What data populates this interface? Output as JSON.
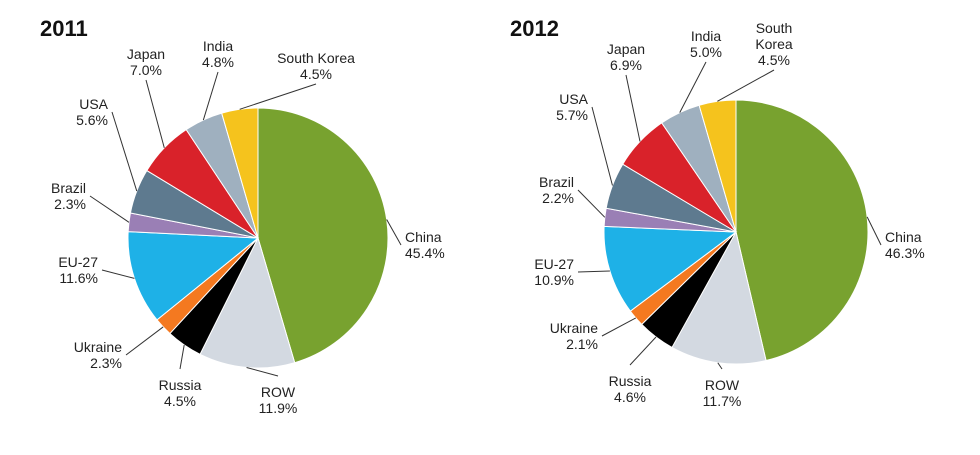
{
  "chart_data": [
    {
      "type": "pie",
      "title": "2011",
      "slices": [
        {
          "label": "China",
          "value": 45.4,
          "value_label": "45.4%",
          "color": "#78A22F"
        },
        {
          "label": "ROW",
          "value": 11.9,
          "value_label": "11.9%",
          "color": "#D3D9E1"
        },
        {
          "label": "Russia",
          "value": 4.5,
          "value_label": "4.5%",
          "color": "#000000"
        },
        {
          "label": "Ukraine",
          "value": 2.3,
          "value_label": "2.3%",
          "color": "#F47920"
        },
        {
          "label": "EU-27",
          "value": 11.6,
          "value_label": "11.6%",
          "color": "#1EB1E7"
        },
        {
          "label": "Brazil",
          "value": 2.3,
          "value_label": "2.3%",
          "color": "#9A7FB5"
        },
        {
          "label": "USA",
          "value": 5.6,
          "value_label": "5.6%",
          "color": "#5E7A8F"
        },
        {
          "label": "Japan",
          "value": 7.0,
          "value_label": "7.0%",
          "color": "#D9222A"
        },
        {
          "label": "India",
          "value": 4.8,
          "value_label": "4.8%",
          "color": "#9FB0BF"
        },
        {
          "label": "South Korea",
          "value": 4.5,
          "value_label": "4.5%",
          "color": "#F5C31D"
        }
      ]
    },
    {
      "type": "pie",
      "title": "2012",
      "slices": [
        {
          "label": "China",
          "value": 46.3,
          "value_label": "46.3%",
          "color": "#78A22F"
        },
        {
          "label": "ROW",
          "value": 11.7,
          "value_label": "11.7%",
          "color": "#D3D9E1"
        },
        {
          "label": "Russia",
          "value": 4.6,
          "value_label": "4.6%",
          "color": "#000000"
        },
        {
          "label": "Ukraine",
          "value": 2.1,
          "value_label": "2.1%",
          "color": "#F47920"
        },
        {
          "label": "EU-27",
          "value": 10.9,
          "value_label": "10.9%",
          "color": "#1EB1E7"
        },
        {
          "label": "Brazil",
          "value": 2.2,
          "value_label": "2.2%",
          "color": "#9A7FB5"
        },
        {
          "label": "USA",
          "value": 5.7,
          "value_label": "5.7%",
          "color": "#5E7A8F"
        },
        {
          "label": "Japan",
          "value": 6.9,
          "value_label": "6.9%",
          "color": "#D9222A"
        },
        {
          "label": "India",
          "value": 5.0,
          "value_label": "5.0%",
          "color": "#9FB0BF"
        },
        {
          "label": "South Korea",
          "value": 4.5,
          "value_label": "4.5%",
          "color": "#F5C31D"
        }
      ]
    }
  ]
}
